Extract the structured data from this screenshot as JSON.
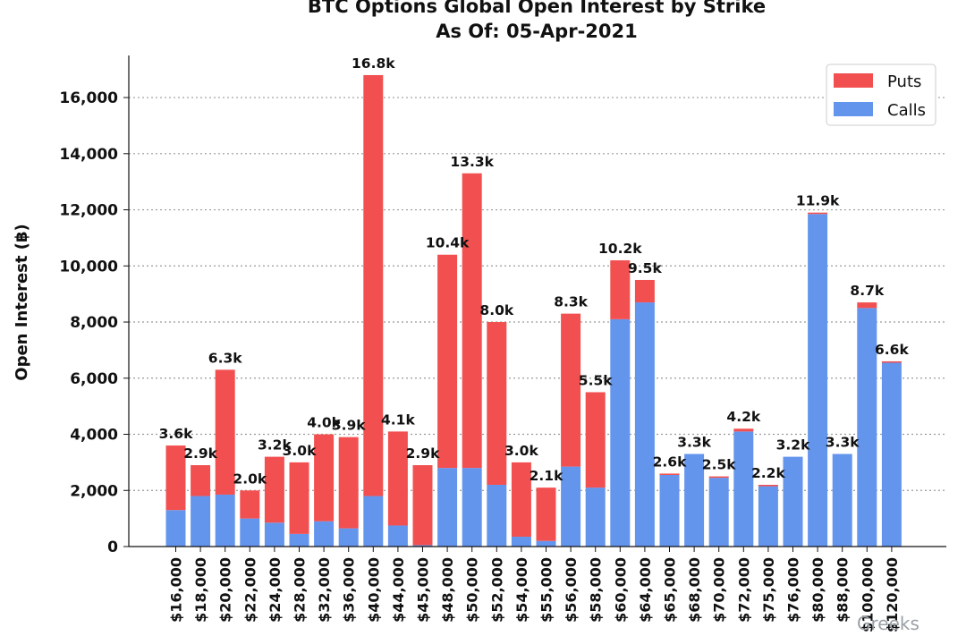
{
  "chart_data": {
    "type": "bar",
    "stacked": true,
    "title": "BTC Options Global Open Interest by Strike",
    "subtitle": "As Of: 05-Apr-2021",
    "xlabel": "",
    "ylabel": "Open Interest (฿)",
    "ylim": [
      0,
      17500
    ],
    "yticks": [
      0,
      2000,
      4000,
      6000,
      8000,
      10000,
      12000,
      14000,
      16000
    ],
    "ytick_labels": [
      "0",
      "2,000",
      "4,000",
      "6,000",
      "8,000",
      "10,000",
      "12,000",
      "14,000",
      "16,000"
    ],
    "grid": "horizontal-dotted",
    "legend_position": "top-right",
    "categories": [
      "$16,000",
      "$18,000",
      "$20,000",
      "$22,000",
      "$24,000",
      "$28,000",
      "$32,000",
      "$36,000",
      "$40,000",
      "$44,000",
      "$45,000",
      "$48,000",
      "$50,000",
      "$52,000",
      "$54,000",
      "$55,000",
      "$56,000",
      "$58,000",
      "$60,000",
      "$64,000",
      "$65,000",
      "$68,000",
      "$70,000",
      "$72,000",
      "$75,000",
      "$76,000",
      "$80,000",
      "$88,000",
      "$100,000",
      "$120,000"
    ],
    "series": [
      {
        "name": "Calls",
        "color": "#6495ed",
        "values": [
          1300,
          1800,
          1850,
          1000,
          850,
          450,
          900,
          650,
          1800,
          750,
          50,
          2800,
          2800,
          2200,
          350,
          200,
          2850,
          2100,
          8100,
          8700,
          2550,
          3300,
          2450,
          4100,
          2150,
          3200,
          11850,
          3300,
          8500,
          6550
        ]
      },
      {
        "name": "Puts",
        "color": "#f25050",
        "values": [
          2300,
          1100,
          4450,
          1000,
          2350,
          2550,
          3100,
          3250,
          15000,
          3350,
          2850,
          7600,
          10500,
          5800,
          2650,
          1900,
          5450,
          3400,
          2100,
          800,
          50,
          0,
          50,
          100,
          50,
          0,
          50,
          0,
          200,
          50
        ]
      }
    ],
    "data_labels": [
      "3.6k",
      "2.9k",
      "6.3k",
      "2.0k",
      "3.2k",
      "3.0k",
      "4.0k",
      "3.9k",
      "16.8k",
      "4.1k",
      "2.9k",
      "10.4k",
      "13.3k",
      "8.0k",
      "3.0k",
      "2.1k",
      "8.3k",
      "5.5k",
      "10.2k",
      "9.5k",
      "2.6k",
      "3.3k",
      "2.5k",
      "4.2k",
      "2.2k",
      "3.2k",
      "11.9k",
      "3.3k",
      "8.7k",
      "6.6k"
    ]
  },
  "legend": [
    {
      "label": "Puts",
      "color": "#f25050"
    },
    {
      "label": "Calls",
      "color": "#6495ed"
    }
  ],
  "watermark": "Greeks"
}
